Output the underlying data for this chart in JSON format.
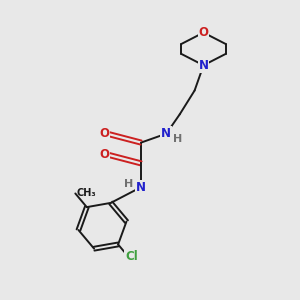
{
  "bg_color": "#e8e8e8",
  "bond_color": "#1a1a1a",
  "N_color": "#2020cc",
  "O_color": "#cc2020",
  "Cl_color": "#40a040",
  "H_color": "#707070",
  "C_color": "#1a1a1a",
  "lw": 1.4,
  "fs": 8.5,
  "xlim": [
    0,
    10
  ],
  "ylim": [
    0,
    10
  ]
}
